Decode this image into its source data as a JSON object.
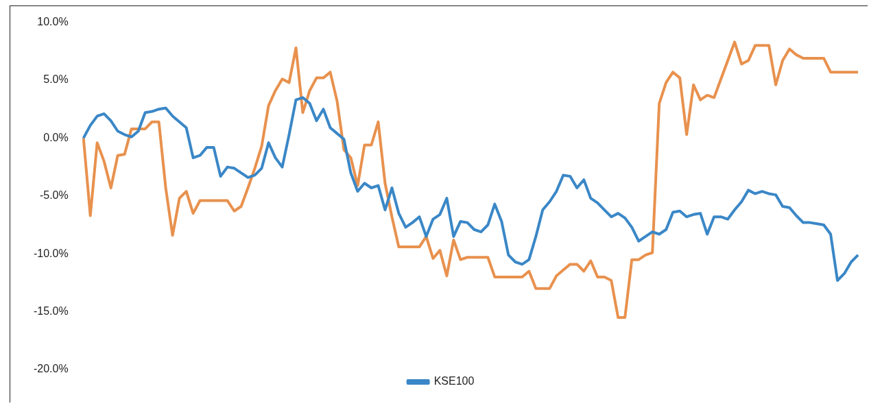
{
  "chart_data": {
    "type": "line",
    "categories": [
      null,
      null,
      null,
      null,
      null,
      null,
      null,
      null,
      null,
      null,
      null,
      null,
      null,
      null,
      null,
      null,
      null,
      null,
      null,
      null,
      null,
      null,
      null,
      null,
      null,
      null,
      null,
      null,
      null,
      null,
      null,
      null,
      null,
      null,
      null,
      null,
      null,
      null,
      null,
      null,
      null,
      null,
      null,
      null,
      null,
      null,
      null,
      null,
      null,
      null,
      null,
      null,
      null,
      null,
      null,
      null,
      null,
      null,
      null,
      null,
      null,
      null,
      null,
      null,
      null,
      null,
      null,
      null,
      null,
      null,
      null,
      null,
      null,
      null,
      null,
      null,
      null,
      null,
      null,
      null,
      null,
      null,
      null,
      null,
      null,
      null,
      null,
      null,
      null,
      null,
      null,
      null,
      null,
      null,
      null,
      null,
      null,
      null,
      null,
      null,
      null,
      null,
      null,
      null,
      null,
      null,
      null,
      null,
      null,
      null,
      null,
      null,
      null,
      null
    ],
    "series": [
      {
        "name": "KSE100",
        "color": "#3a87c7",
        "values": [
          0,
          1.1,
          1.9,
          2.1,
          1.5,
          0.6,
          0.3,
          0.1,
          0.6,
          2.2,
          2.3,
          2.5,
          2.6,
          1.9,
          1.4,
          0.9,
          -1.7,
          -1.5,
          -0.8,
          -0.8,
          -3.3,
          -2.5,
          -2.6,
          -3.0,
          -3.4,
          -3.2,
          -2.6,
          -0.4,
          -1.7,
          -2.5,
          0.3,
          3.3,
          3.5,
          3.0,
          1.5,
          2.5,
          0.9,
          0.4,
          -0.1,
          -3.0,
          -4.6,
          -3.9,
          -4.3,
          -4.1,
          -6.2,
          -4.3,
          -6.5,
          -7.7,
          -7.3,
          -6.8,
          -8.5,
          -7.0,
          -6.6,
          -5.2,
          -8.5,
          -7.2,
          -7.3,
          -7.9,
          -8.1,
          -7.5,
          -5.7,
          -7.2,
          -10.1,
          -10.7,
          -10.9,
          -10.5,
          -8.5,
          -6.2,
          -5.5,
          -4.6,
          -3.2,
          -3.3,
          -4.3,
          -3.6,
          -5.2,
          -5.6,
          -6.2,
          -6.8,
          -6.5,
          -6.9,
          -7.7,
          -8.9,
          -8.5,
          -8.1,
          -8.3,
          -7.9,
          -6.4,
          -6.3,
          -6.8,
          -6.6,
          -6.5,
          -8.3,
          -6.8,
          -6.8,
          -7.0,
          -6.2,
          -5.5,
          -4.5,
          -4.8,
          -4.6,
          -4.8,
          -4.9,
          -5.9,
          -6.0,
          -6.7,
          -7.3,
          -7.3,
          -7.4,
          -7.5,
          -8.3,
          -12.3,
          -11.7,
          -10.7,
          -10.1
        ]
      },
      {
        "color": "#e8914e",
        "values": [
          0,
          -6.7,
          -0.4,
          -2.0,
          -4.3,
          -1.5,
          -1.4,
          0.8,
          0.8,
          0.8,
          1.4,
          1.4,
          -4.3,
          -8.4,
          -5.2,
          -4.6,
          -6.5,
          -5.4,
          -5.4,
          -5.4,
          -5.4,
          -5.4,
          -6.3,
          -5.9,
          -4.3,
          -2.6,
          -0.7,
          2.8,
          4.1,
          5.1,
          4.8,
          7.8,
          2.2,
          4.1,
          5.2,
          5.2,
          5.7,
          3.2,
          -1.0,
          -1.7,
          -4.1,
          -0.6,
          -0.6,
          1.4,
          -3.9,
          -6.8,
          -9.4,
          -9.4,
          -9.4,
          -9.4,
          -8.5,
          -10.4,
          -9.7,
          -11.9,
          -8.8,
          -10.5,
          -10.3,
          -10.3,
          -10.3,
          -10.3,
          -12.0,
          -12.0,
          -12.0,
          -12.0,
          -12.0,
          -11.5,
          -13.0,
          -13.0,
          -13.0,
          -11.9,
          -11.4,
          -10.9,
          -10.9,
          -11.5,
          -10.6,
          -12.0,
          -12.0,
          -12.3,
          -15.5,
          -15.5,
          -10.5,
          -10.5,
          -10.1,
          -9.9,
          3.0,
          4.8,
          5.7,
          5.2,
          0.3,
          4.6,
          3.3,
          3.7,
          3.5,
          5.1,
          6.7,
          8.3,
          6.4,
          6.7,
          8.0,
          8.0,
          8.0,
          4.6,
          6.7,
          7.7,
          7.2,
          6.9,
          6.9,
          6.9,
          6.9,
          5.7,
          5.7,
          5.7,
          5.7,
          5.7
        ]
      }
    ],
    "ylim": [
      -20,
      10
    ],
    "yticks": [
      {
        "value": -20,
        "label": "-20.0%"
      },
      {
        "value": -15,
        "label": "-15.0%"
      },
      {
        "value": -10,
        "label": "-10.0%"
      },
      {
        "value": -5,
        "label": "-5.0%"
      },
      {
        "value": 0,
        "label": "0.0%"
      },
      {
        "value": 5,
        "label": "5.0%"
      },
      {
        "value": 10,
        "label": "10.0%"
      }
    ],
    "tick_labels": "y",
    "grid": false,
    "legend": "bottom",
    "marker": "none",
    "line_style": "solid"
  }
}
